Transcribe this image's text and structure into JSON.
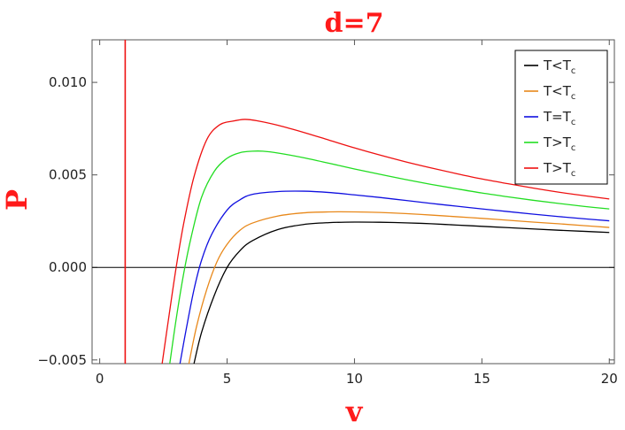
{
  "chart_data": {
    "type": "line",
    "title": "d=7",
    "xlabel": "v",
    "ylabel": "P",
    "xlim": [
      -0.3,
      20.2
    ],
    "ylim": [
      -0.0052,
      0.0123
    ],
    "xticks": [
      0,
      5,
      10,
      15,
      20
    ],
    "xtick_labels": [
      "0",
      "5",
      "10",
      "15",
      "20"
    ],
    "yticks": [
      -0.005,
      0.0,
      0.005,
      0.01
    ],
    "ytick_labels": [
      "−0.005",
      "0.000",
      "0.005",
      "0.010"
    ],
    "legend_position": "top-right",
    "grid": false,
    "hline": 0.0,
    "series": [
      {
        "name": "T<Tc",
        "label_main": "T<T",
        "label_sub": "c",
        "color": "#000000",
        "x": [
          3.7,
          4.0,
          4.5,
          5.0,
          5.5,
          6.0,
          7.0,
          8.0,
          9.0,
          10.0,
          11.0,
          12.0,
          13.0,
          14.0,
          15.0,
          16.0,
          17.0,
          18.0,
          19.0,
          20.0
        ],
        "y": [
          -0.0052,
          -0.0035,
          -0.0015,
          0.0,
          0.0009,
          0.00145,
          0.00205,
          0.00232,
          0.00242,
          0.00245,
          0.00244,
          0.00241,
          0.00236,
          0.00229,
          0.00222,
          0.00215,
          0.00208,
          0.00201,
          0.00195,
          0.00189
        ]
      },
      {
        "name": "T<Tc",
        "label_main": "T<T",
        "label_sub": "c",
        "color": "#e8881a",
        "x": [
          3.5,
          3.8,
          4.2,
          4.6,
          5.0,
          5.5,
          6.0,
          7.0,
          8.0,
          9.0,
          10.0,
          11.0,
          12.0,
          13.0,
          14.0,
          15.0,
          16.0,
          17.0,
          18.0,
          19.0,
          20.0
        ],
        "y": [
          -0.0052,
          -0.0032,
          -0.0012,
          0.0003,
          0.00125,
          0.002,
          0.0024,
          0.00278,
          0.00295,
          0.003,
          0.003,
          0.00297,
          0.00291,
          0.00283,
          0.00274,
          0.00265,
          0.00255,
          0.00245,
          0.00236,
          0.00226,
          0.00216
        ]
      },
      {
        "name": "T=Tc",
        "label_main": " T=T",
        "label_sub": "c",
        "color": "#1010e0",
        "x": [
          3.15,
          3.4,
          3.7,
          4.0,
          4.4,
          5.0,
          5.5,
          6.0,
          7.0,
          8.0,
          9.0,
          10.0,
          11.0,
          12.0,
          13.0,
          14.0,
          15.0,
          16.0,
          17.0,
          18.0,
          19.0,
          20.0
        ],
        "y": [
          -0.0052,
          -0.0033,
          -0.0012,
          0.0004,
          0.0018,
          0.0031,
          0.00365,
          0.00395,
          0.0041,
          0.00412,
          0.00405,
          0.00392,
          0.00378,
          0.00362,
          0.00346,
          0.00331,
          0.00316,
          0.00302,
          0.00288,
          0.00275,
          0.00263,
          0.00252
        ]
      },
      {
        "name": "T>Tc",
        "label_main": "T>T",
        "label_sub": "c",
        "color": "#22dd22",
        "x": [
          2.75,
          3.0,
          3.3,
          3.6,
          4.0,
          4.5,
          5.0,
          5.5,
          6.0,
          6.4,
          7.0,
          8.0,
          9.0,
          10.0,
          11.0,
          12.0,
          13.0,
          14.0,
          15.0,
          16.0,
          17.0,
          18.0,
          19.0,
          20.0
        ],
        "y": [
          -0.0052,
          -0.0028,
          -0.0003,
          0.0017,
          0.0038,
          0.0052,
          0.0059,
          0.0062,
          0.00628,
          0.00628,
          0.00618,
          0.00593,
          0.00563,
          0.00532,
          0.00503,
          0.00475,
          0.00449,
          0.00425,
          0.00402,
          0.00382,
          0.00363,
          0.00346,
          0.0033,
          0.00316
        ]
      },
      {
        "name": "T>Tc",
        "label_main": "T>T",
        "label_sub": "c",
        "color": "#ee1111",
        "x": [
          2.45,
          2.7,
          3.0,
          3.3,
          3.7,
          4.2,
          4.7,
          5.2,
          5.7,
          6.2,
          7.0,
          8.0,
          9.0,
          10.0,
          11.0,
          12.0,
          13.0,
          14.0,
          15.0,
          16.0,
          17.0,
          18.0,
          19.0,
          20.0
        ],
        "y": [
          -0.0052,
          -0.0028,
          0.0,
          0.0024,
          0.0049,
          0.0069,
          0.0077,
          0.0079,
          0.008,
          0.00792,
          0.00768,
          0.0073,
          0.00688,
          0.00646,
          0.00607,
          0.00571,
          0.00538,
          0.00507,
          0.00478,
          0.00453,
          0.00429,
          0.00407,
          0.00388,
          0.0037
        ]
      }
    ],
    "vertical_line": {
      "x": 1.0,
      "y": [
        -0.0052,
        0.0123
      ],
      "color": "#ee1111"
    }
  }
}
